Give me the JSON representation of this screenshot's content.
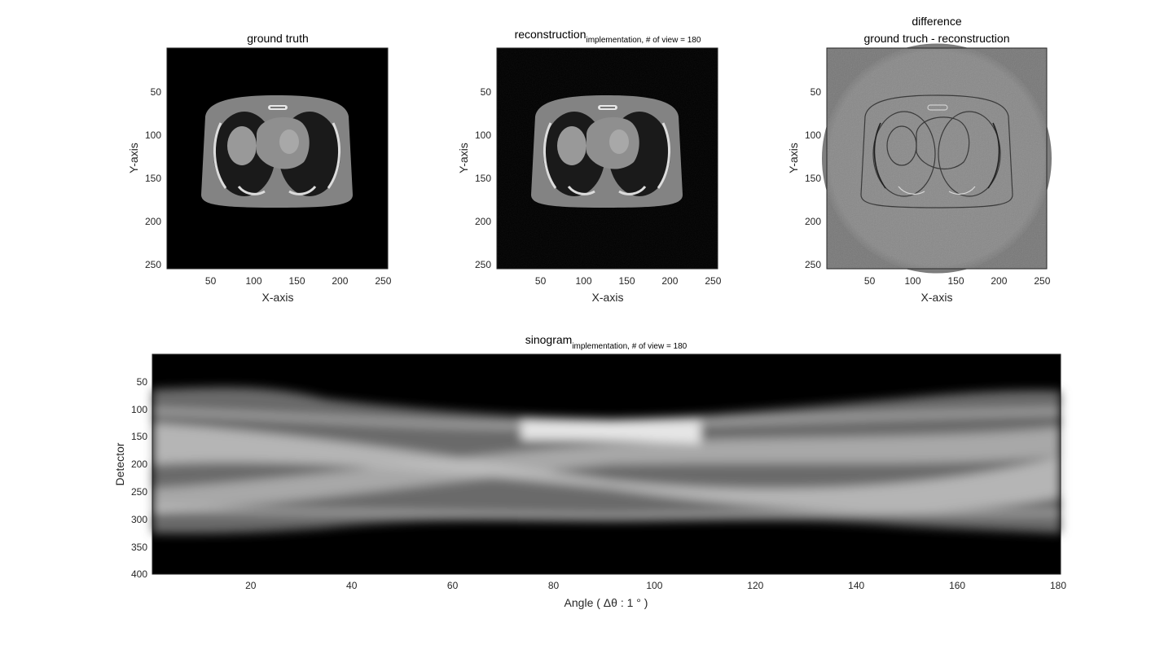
{
  "figure": {
    "background": "#ffffff"
  },
  "chart_data": [
    {
      "type": "heatmap",
      "id": "ground-truth",
      "title": "ground truth",
      "xlabel": "X-axis",
      "ylabel": "Y-axis",
      "xlim": [
        0.5,
        256.5
      ],
      "ylim": [
        0.5,
        256.5
      ],
      "xticks": [
        50,
        100,
        150,
        200,
        250
      ],
      "yticks": [
        50,
        100,
        150,
        200,
        250
      ],
      "colormap": "gray"
    },
    {
      "type": "heatmap",
      "id": "reconstruction",
      "title": "reconstruction",
      "title_subscript": "implementation, # of view = 180",
      "xlabel": "X-axis",
      "ylabel": "Y-axis",
      "xlim": [
        0.5,
        256.5
      ],
      "ylim": [
        0.5,
        256.5
      ],
      "xticks": [
        50,
        100,
        150,
        200,
        250
      ],
      "yticks": [
        50,
        100,
        150,
        200,
        250
      ],
      "colormap": "gray"
    },
    {
      "type": "heatmap",
      "id": "difference",
      "title": "difference",
      "subtitle": "ground truch - reconstruction",
      "xlabel": "X-axis",
      "ylabel": "Y-axis",
      "xlim": [
        0.5,
        256.5
      ],
      "ylim": [
        0.5,
        256.5
      ],
      "xticks": [
        50,
        100,
        150,
        200,
        250
      ],
      "yticks": [
        50,
        100,
        150,
        200,
        250
      ],
      "colormap": "gray"
    },
    {
      "type": "heatmap",
      "id": "sinogram",
      "title": "sinogram",
      "title_subscript": "implementation, # of view = 180",
      "xlabel": "Angle ( Δθ : 1 ° )",
      "ylabel": "Detector",
      "xlim": [
        0.5,
        180.5
      ],
      "ylim": [
        0.5,
        400.5
      ],
      "xticks": [
        20,
        40,
        60,
        80,
        100,
        120,
        140,
        160,
        180
      ],
      "yticks": [
        50,
        100,
        150,
        200,
        250,
        300,
        350,
        400
      ],
      "colormap": "gray"
    }
  ]
}
